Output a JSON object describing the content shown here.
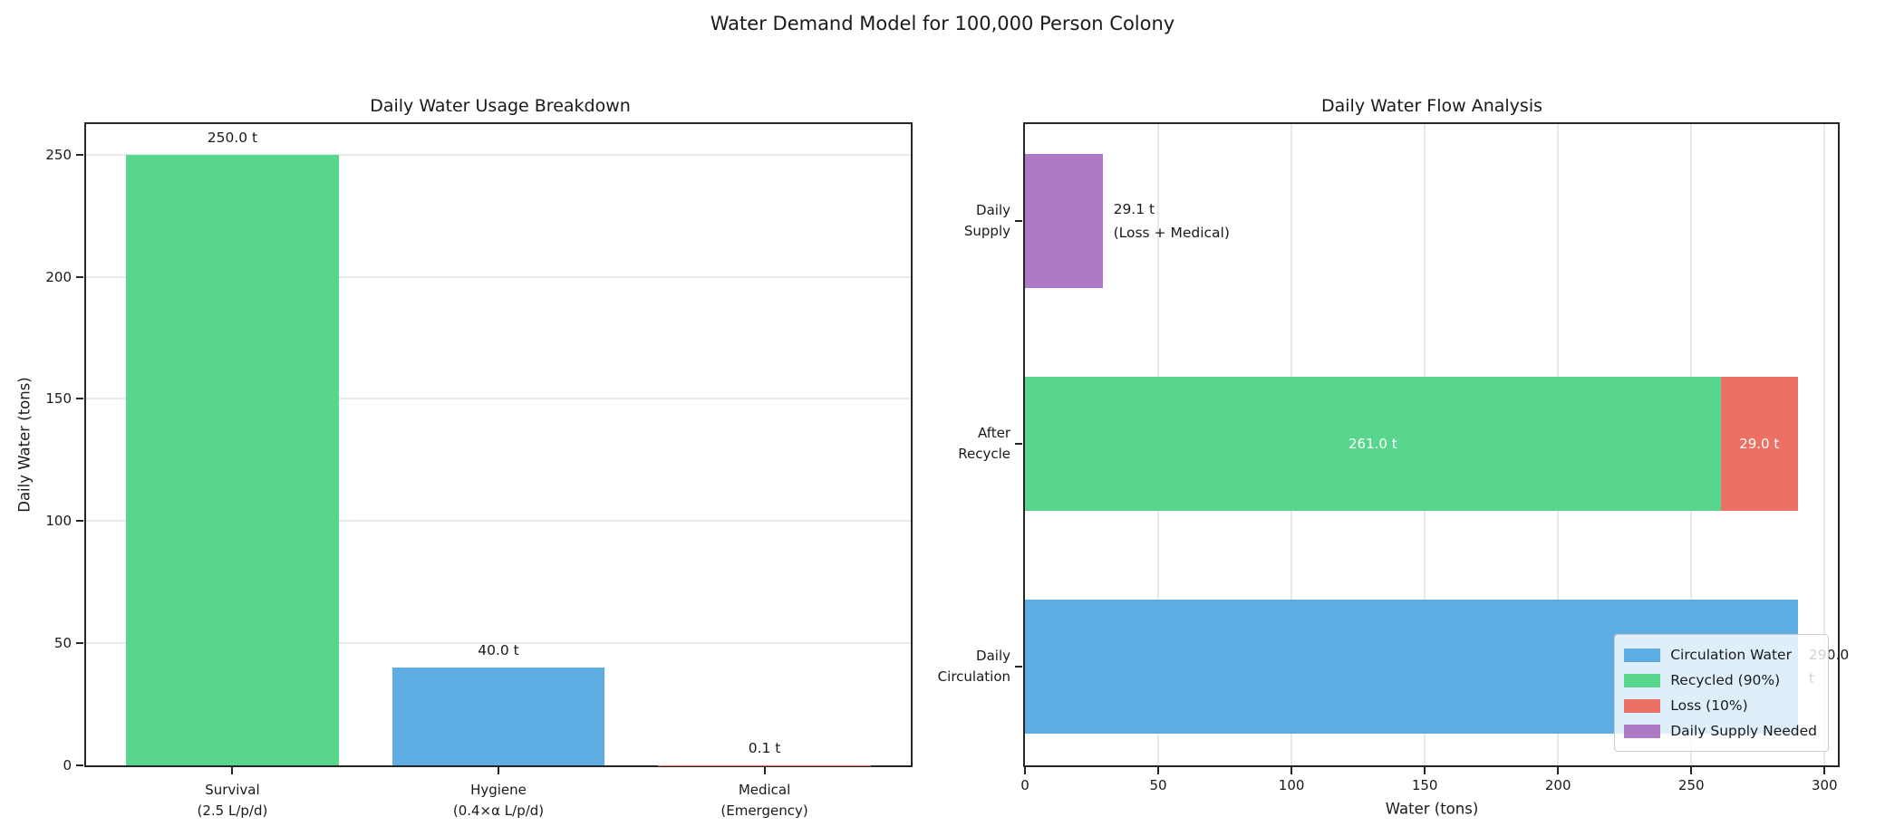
{
  "figure": {
    "title": "Water Demand Model for 100,000 Person Colony",
    "background_color": "#ffffff",
    "text_color": "#1a1a1a",
    "grid_color": "#e9e9e9",
    "spine_color": "#262626"
  },
  "chart_data": [
    {
      "type": "bar",
      "title": "Daily Water Usage Breakdown",
      "xlabel": "",
      "ylabel": "Daily Water (tons)",
      "categories": [
        "Survival\n(2.5 L/p/d)",
        "Hygiene\n(0.4×α L/p/d)",
        "Medical\n(Emergency)"
      ],
      "values": [
        250.0,
        40.0,
        0.1
      ],
      "bar_labels": [
        "250.0 t",
        "40.0 t",
        "0.1 t"
      ],
      "bar_colors": [
        "#58d68d",
        "#5dade2",
        "#ec7063"
      ],
      "yticks": [
        0,
        50,
        100,
        150,
        200,
        250
      ],
      "ylim": [
        0,
        262.5
      ],
      "grid": "horizontal",
      "legend": null
    },
    {
      "type": "horizontal-stacked-bar",
      "title": "Daily Water Flow Analysis",
      "xlabel": "Water (tons)",
      "ylabel": "",
      "xticks": [
        0,
        50,
        100,
        150,
        200,
        250,
        300
      ],
      "xlim": [
        0,
        305
      ],
      "grid": "vertical",
      "bars": [
        {
          "category": "Daily\nSupply",
          "segments": [
            {
              "name": "Daily Supply Needed",
              "value": 29.1,
              "color": "#af7ac5",
              "label": "",
              "label_color": "#ffffff"
            }
          ],
          "annotation": {
            "text": "29.1 t\n(Loss + Medical)",
            "color": "#1a1a1a"
          }
        },
        {
          "category": "After\nRecycle",
          "segments": [
            {
              "name": "Recycled (90%)",
              "value": 261.0,
              "color": "#58d68d",
              "label": "261.0 t",
              "label_color": "#ffffff"
            },
            {
              "name": "Loss (10%)",
              "value": 29.0,
              "color": "#ec7063",
              "label": "29.0 t",
              "label_color": "#ffffff"
            }
          ],
          "annotation": null
        },
        {
          "category": "Daily\nCirculation",
          "segments": [
            {
              "name": "Circulation Water",
              "value": 290.0,
              "color": "#5dade2",
              "label": "",
              "label_color": "#ffffff"
            }
          ],
          "annotation": {
            "text": "290.0 t",
            "color": "#1a1a1a"
          }
        }
      ],
      "legend": {
        "position": "lower right",
        "entries": [
          {
            "label": "Circulation Water",
            "color": "#5dade2"
          },
          {
            "label": "Recycled (90%)",
            "color": "#58d68d"
          },
          {
            "label": "Loss (10%)",
            "color": "#ec7063"
          },
          {
            "label": "Daily Supply Needed",
            "color": "#af7ac5"
          }
        ]
      }
    }
  ]
}
